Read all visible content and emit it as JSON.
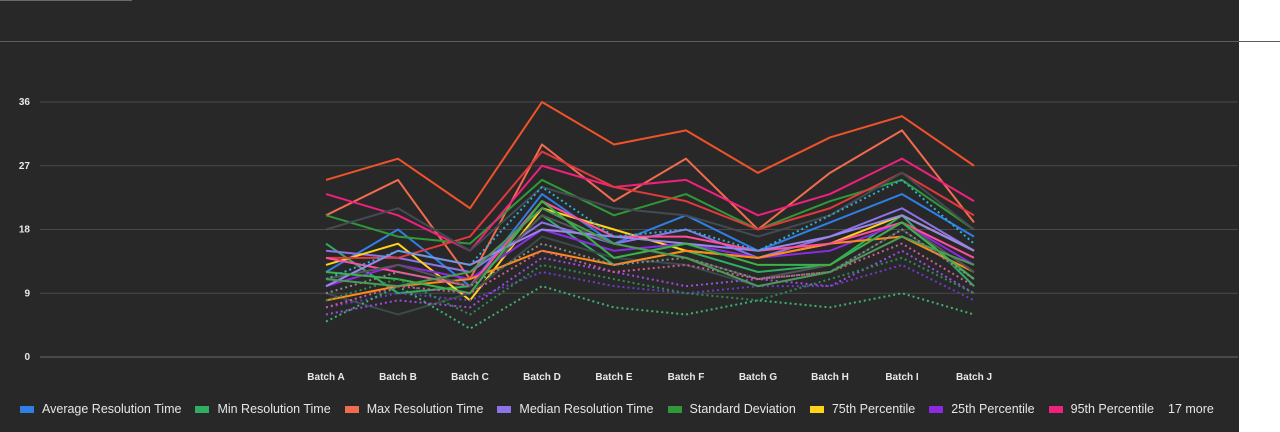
{
  "chart_data": {
    "type": "line",
    "categories": [
      "Batch A",
      "Batch B",
      "Batch C",
      "Batch D",
      "Batch E",
      "Batch F",
      "Batch G",
      "Batch H",
      "Batch I",
      "Batch J"
    ],
    "ylim": [
      0,
      36
    ],
    "yticks": [
      0,
      9,
      18,
      27,
      36
    ],
    "grid": true,
    "legend_position": "bottom",
    "legend_more": "17 more",
    "series": [
      {
        "name": "Average Resolution Time",
        "color": "#2f7fe6",
        "style": "solid",
        "values": [
          12,
          18,
          10,
          23,
          16,
          20,
          15,
          19,
          23,
          17
        ]
      },
      {
        "name": "Min Resolution Time",
        "color": "#2fae62",
        "style": "solid",
        "values": [
          16,
          9,
          10,
          20,
          13,
          15,
          12,
          13,
          20,
          10
        ]
      },
      {
        "name": "Max Resolution Time",
        "color": "#f26b4e",
        "style": "solid",
        "values": [
          20,
          25,
          11,
          30,
          22,
          28,
          18,
          26,
          32,
          19
        ]
      },
      {
        "name": "Median Resolution Time",
        "color": "#8c73e8",
        "style": "solid",
        "values": [
          15,
          14,
          12,
          19,
          16,
          18,
          14,
          17,
          21,
          15
        ]
      },
      {
        "name": "Standard Deviation",
        "color": "#2e9936",
        "style": "solid",
        "values": [
          20,
          17,
          16,
          25,
          20,
          23,
          18,
          22,
          25,
          18
        ]
      },
      {
        "name": "75th Percentile",
        "color": "#ffd21c",
        "style": "solid",
        "values": [
          13,
          16,
          8,
          21,
          18,
          15,
          14,
          16,
          20,
          15
        ]
      },
      {
        "name": "25th Percentile",
        "color": "#8a2be2",
        "style": "solid",
        "values": [
          10,
          13,
          11,
          18,
          15,
          16,
          14,
          15,
          19,
          13
        ]
      },
      {
        "name": "95th Percentile",
        "color": "#f0207e",
        "style": "solid",
        "values": [
          23,
          20,
          15,
          27,
          24,
          25,
          20,
          23,
          28,
          22
        ]
      },
      {
        "color": "#f0522a",
        "style": "solid",
        "values": [
          25,
          28,
          21,
          36,
          30,
          32,
          26,
          31,
          34,
          27
        ]
      },
      {
        "color": "#e0393e",
        "style": "solid",
        "values": [
          14,
          14,
          17,
          29,
          24,
          22,
          18,
          21,
          26,
          20
        ]
      },
      {
        "color": "#444a52",
        "style": "solid",
        "values": [
          18,
          21,
          15,
          24,
          21,
          20,
          17,
          20,
          26,
          18
        ]
      },
      {
        "color": "#3a4a4a",
        "style": "solid",
        "values": [
          9,
          6,
          9,
          17,
          14,
          13,
          10,
          12,
          18,
          11
        ]
      },
      {
        "color": "#ff8a1a",
        "style": "solid",
        "values": [
          8,
          10,
          11,
          15,
          13,
          15,
          14,
          16,
          17,
          12
        ]
      },
      {
        "color": "#ff4f9a",
        "style": "solid",
        "values": [
          14,
          12,
          10,
          22,
          17,
          17,
          15,
          16,
          19,
          14
        ]
      },
      {
        "color": "#555555",
        "style": "solid",
        "values": [
          11,
          13,
          10,
          20,
          16,
          14,
          11,
          13,
          19,
          12
        ]
      },
      {
        "color": "#9a86ec",
        "style": "solid",
        "values": [
          10,
          15,
          13,
          18,
          17,
          16,
          15,
          17,
          20,
          15
        ]
      },
      {
        "color": "#38b449",
        "style": "solid",
        "values": [
          12,
          11,
          9,
          22,
          14,
          16,
          13,
          13,
          19,
          11
        ]
      },
      {
        "color": "#2bb0d6",
        "style": "dotted",
        "values": [
          11,
          15,
          13,
          24,
          17,
          18,
          15,
          20,
          25,
          16
        ]
      },
      {
        "color": "#a04ae8",
        "style": "dotted",
        "values": [
          6,
          8,
          7,
          14,
          12,
          10,
          11,
          10,
          15,
          9
        ]
      },
      {
        "color": "#6a3cc8",
        "style": "dotted",
        "values": [
          7,
          9,
          8,
          12,
          10,
          9,
          10,
          10,
          13,
          8
        ]
      },
      {
        "color": "#3cb371",
        "style": "dotted",
        "values": [
          5,
          10,
          4,
          10,
          7,
          6,
          8,
          7,
          9,
          6
        ]
      },
      {
        "color": "#2e8b57",
        "style": "dotted",
        "values": [
          8,
          11,
          6,
          13,
          11,
          9,
          8,
          11,
          14,
          9
        ]
      },
      {
        "color": "#8a8a8a",
        "style": "dotted",
        "values": [
          9,
          12,
          10,
          16,
          13,
          14,
          11,
          12,
          18,
          11
        ]
      },
      {
        "color": "#cd5c9a",
        "style": "dotted",
        "values": [
          7,
          10,
          9,
          15,
          12,
          13,
          11,
          12,
          16,
          10
        ]
      },
      {
        "color": "#4d9a56",
        "style": "solid",
        "values": [
          11,
          10,
          12,
          21,
          16,
          14,
          10,
          12,
          17,
          13
        ]
      }
    ]
  }
}
